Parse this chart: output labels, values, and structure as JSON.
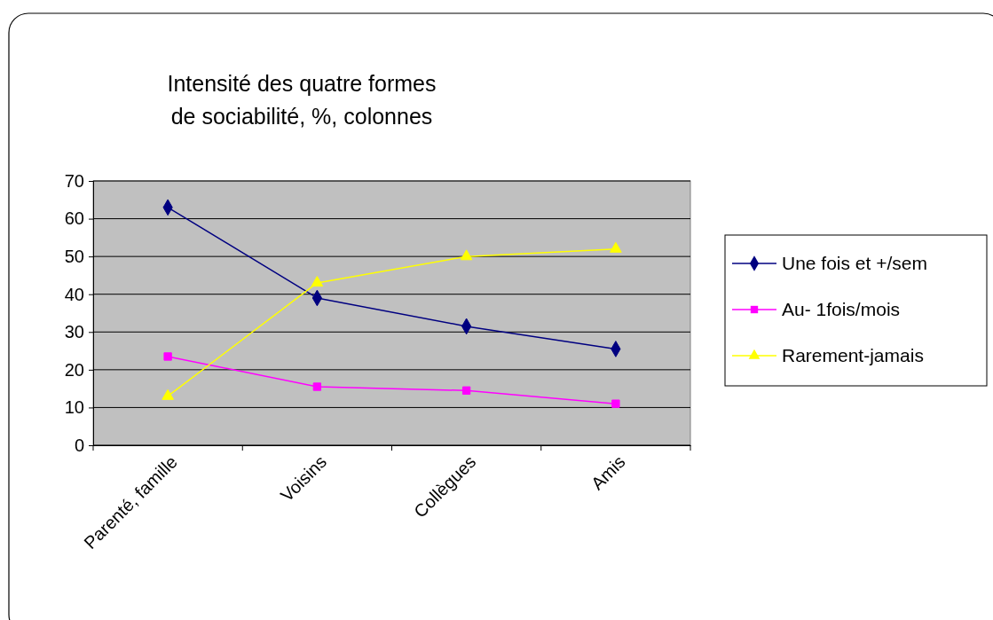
{
  "chart_data": {
    "type": "line",
    "title": "Intensité des quatre formes\nde sociabilité, %, colonnes",
    "categories": [
      "Parenté, famille",
      "Voisins",
      "Collègues",
      "Amis"
    ],
    "series": [
      {
        "name": "Une fois et +/sem",
        "color": "#000080",
        "marker": "diamond",
        "values": [
          63,
          39,
          31.5,
          25.5
        ]
      },
      {
        "name": "Au- 1fois/mois",
        "color": "#ff00ff",
        "marker": "square",
        "values": [
          23.5,
          15.5,
          14.5,
          11
        ]
      },
      {
        "name": "Rarement-jamais",
        "color": "#ffff00",
        "marker": "triangle",
        "values": [
          13,
          43,
          50,
          52
        ]
      }
    ],
    "ylim": [
      0,
      70
    ],
    "yticks": [
      0,
      10,
      20,
      30,
      40,
      50,
      60,
      70
    ],
    "grid": "y",
    "legend": "right"
  }
}
